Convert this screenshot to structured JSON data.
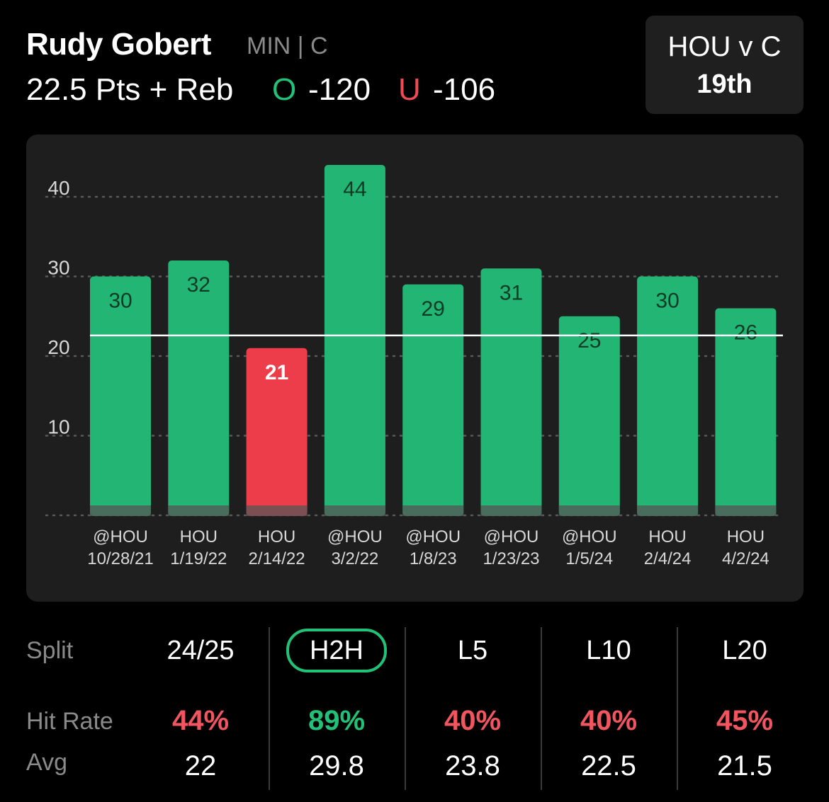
{
  "header": {
    "player_name": "Rudy Gobert",
    "player_team": "MIN | C",
    "prop_line": "22.5 Pts + Reb",
    "over_marker": "O",
    "over_odds": "-120",
    "under_marker": "U",
    "under_odds": "-106"
  },
  "matchup": {
    "title": "HOU v C",
    "rank": "19th"
  },
  "colors": {
    "over": "#22b574",
    "under": "#ee3d4a",
    "grid": "#5a5a5a",
    "line": "#ffffff"
  },
  "chart_data": {
    "type": "bar",
    "categories": [
      "@HOU 10/28/21",
      "HOU 1/19/22",
      "HOU 2/14/22",
      "@HOU 3/2/22",
      "@HOU 1/8/23",
      "@HOU 1/23/23",
      "@HOU 1/5/24",
      "HOU 2/4/24",
      "HOU 4/2/24"
    ],
    "category_lines": [
      [
        "@HOU",
        "10/28/21"
      ],
      [
        "HOU",
        "1/19/22"
      ],
      [
        "HOU",
        "2/14/22"
      ],
      [
        "@HOU",
        "3/2/22"
      ],
      [
        "@HOU",
        "1/8/23"
      ],
      [
        "@HOU",
        "1/23/23"
      ],
      [
        "@HOU",
        "1/5/24"
      ],
      [
        "HOU",
        "2/4/24"
      ],
      [
        "HOU",
        "4/2/24"
      ]
    ],
    "values": [
      30,
      32,
      21,
      44,
      29,
      31,
      25,
      30,
      26
    ],
    "line_value": 22.5,
    "y_ticks": [
      10,
      20,
      30,
      40
    ],
    "ylim": [
      0,
      44
    ],
    "grid": true,
    "title": "",
    "xlabel": "",
    "ylabel": ""
  },
  "splits": {
    "split_label": "Split",
    "hit_label": "Hit Rate",
    "avg_label": "Avg",
    "columns": [
      {
        "name": "24/25",
        "hit_rate": "44%",
        "avg": "22",
        "hit_good": false,
        "active": false
      },
      {
        "name": "H2H",
        "hit_rate": "89%",
        "avg": "29.8",
        "hit_good": true,
        "active": true
      },
      {
        "name": "L5",
        "hit_rate": "40%",
        "avg": "23.8",
        "hit_good": false,
        "active": false
      },
      {
        "name": "L10",
        "hit_rate": "40%",
        "avg": "22.5",
        "hit_good": false,
        "active": false
      },
      {
        "name": "L20",
        "hit_rate": "45%",
        "avg": "21.5",
        "hit_good": false,
        "active": false
      }
    ]
  }
}
